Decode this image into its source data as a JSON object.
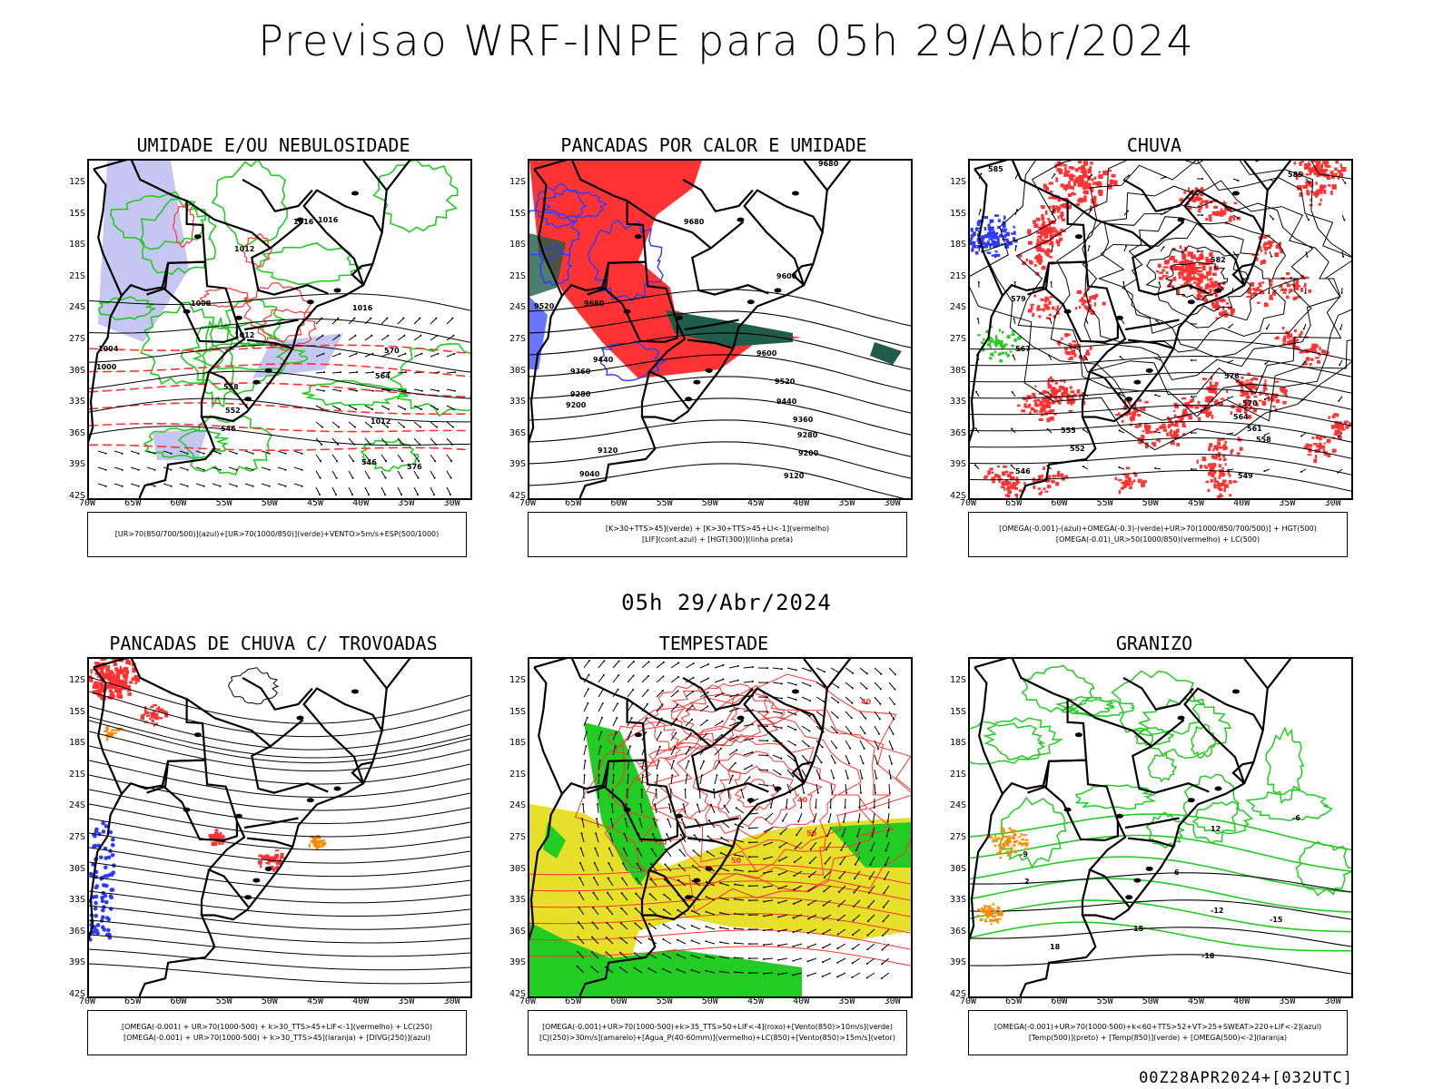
{
  "title": "Previsao WRF-INPE  para 05h 29/Abr/2024",
  "mid_title": "05h 29/Abr/2024",
  "footer": "00Z28APR2024+[032UTC]",
  "lat_labels": [
    "12S",
    "15S",
    "18S",
    "21S",
    "24S",
    "27S",
    "30S",
    "33S",
    "36S",
    "39S",
    "42S"
  ],
  "lon_labels": [
    "70W",
    "65W",
    "60W",
    "55W",
    "50W",
    "45W",
    "40W",
    "35W",
    "30W"
  ],
  "colors": {
    "blue": "#2b3bff",
    "green": "#22cc22",
    "red": "#ff3333",
    "lavender": "#b8b8f0",
    "yellow": "#e6e02a",
    "darkgreen": "#1f5c4a",
    "orange": "#ff8800"
  },
  "panels": [
    {
      "title": "UMIDADE E/OU NEBULOSIDADE",
      "legend": [
        "[UR>70(850/700/500)](azul)+[UR>70(1000/850)](verde)+VENTO>5m/s+ESP(500/1000)"
      ],
      "contour_labels": [
        "1016",
        "1012",
        "1008",
        "1004",
        "1000",
        "1016",
        "1016",
        "1012",
        "1012",
        "576",
        "570",
        "564",
        "558",
        "552",
        "546",
        "546"
      ]
    },
    {
      "title": "PANCADAS POR CALOR E UMIDADE",
      "legend": [
        "[K>30+TTS>45](verde) + [K>30+TTS>45+LI<-1](vermelho)",
        "[LIF](cont.azul) + [HGT(300)](linha preta)"
      ],
      "contour_labels": [
        "9680",
        "9680",
        "9600",
        "9520",
        "9440",
        "9360",
        "9280",
        "9200",
        "9120",
        "9040",
        "9520",
        "9440",
        "9360",
        "9280",
        "9200",
        "9120",
        "9600",
        "9680"
      ]
    },
    {
      "title": "CHUVA",
      "legend": [
        "[OMEGA(-0.001)-(azul)+OMEGA(-0.3)-(verde)+UR>70(1000/850/700/500)] + HGT(500)",
        "[OMEGA(-0.01)_UR>50(1000/850)(vermelho) + LC(500)"
      ],
      "contour_labels": [
        "585",
        "585",
        "582",
        "579",
        "576",
        "573",
        "570",
        "567",
        "564",
        "561",
        "558",
        "555",
        "552",
        "549",
        "546"
      ]
    },
    {
      "title": "PANCADAS DE CHUVA C/ TROVOADAS",
      "legend": [
        "[OMEGA(-0.001) + UR>70(1000-500) + k>30_TTS>45+LIF<-1](vermelho) + LC(250)",
        "[OMEGA(-0.001) + UR>70(1000-500) + k>30_TTS>45](laranja) + [DIVG(250)](azul)"
      ],
      "contour_labels": []
    },
    {
      "title": "TEMPESTADE",
      "legend": [
        "[OMEGA(-0.001)+UR>70(1000-500)+k>35_TTS>50+LIF<-4](roxo)+[Vento(850)>10m/s](verde)",
        "[CJ(250)>30m/s](amarelo)+[Agua_P(40-60mm)](vermelho)+LC(850)+[Vento(850)>15m/s](vetor)"
      ],
      "contour_labels": [
        "40",
        "40",
        "50",
        "50",
        "50"
      ]
    },
    {
      "title": "GRANIZO",
      "legend": [
        "[OMEGA(-0.001)+UR>70(1000-500)+k<60+TTS>52+VT>25+SWEAT>220+LIF<-2](azul)",
        "[Temp(500)](preto) + [Temp(850)](verde) + [OMEGA(500)<-2](laranja)"
      ],
      "contour_labels": [
        "-6",
        "-9",
        "-12",
        "-15",
        "-18",
        "2",
        "6",
        "12",
        "15",
        "18"
      ]
    }
  ]
}
